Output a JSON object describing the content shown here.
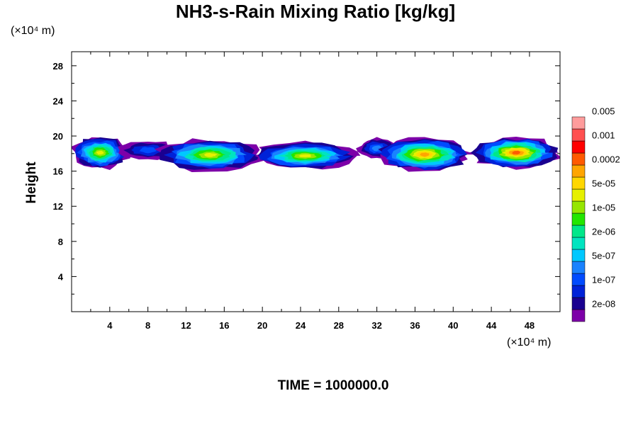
{
  "chart_data": {
    "type": "heatmap",
    "title": "NH3-s-Rain Mixing Ratio [kg/kg]",
    "ylabel": "Height",
    "x_unit_label": "(×10⁴ m)",
    "y_unit_label": "(×10⁴ m)",
    "footer": "TIME = 1000000.0",
    "xlim": [
      0,
      51.2
    ],
    "ylim": [
      0,
      29.6
    ],
    "x_ticks": [
      "4",
      "8",
      "12",
      "16",
      "20",
      "24",
      "28",
      "32",
      "36",
      "40",
      "44",
      "48"
    ],
    "y_ticks": [
      "4",
      "8",
      "12",
      "16",
      "20",
      "24",
      "28"
    ],
    "colorbar": {
      "colors": [
        "#7d00a8",
        "#1a0090",
        "#0022d8",
        "#004bff",
        "#1a82ff",
        "#00c8ff",
        "#00e4c0",
        "#00e78a",
        "#23e600",
        "#96e600",
        "#e6f000",
        "#ffd700",
        "#ffa500",
        "#ff5a00",
        "#ff0000",
        "#ff5050",
        "#ff9c9c"
      ],
      "labels": [
        "2e-08",
        "1e-07",
        "5e-07",
        "2e-06",
        "1e-05",
        "5e-05",
        "0.0002",
        "0.001",
        "0.005"
      ]
    },
    "field_bands": [
      {
        "x": [
          0,
          6
        ],
        "y": [
          16.2,
          20.0
        ],
        "peak_level": 10
      },
      {
        "x": [
          5,
          11
        ],
        "y": [
          17.3,
          19.5
        ],
        "peak_level": 3
      },
      {
        "x": [
          9,
          20
        ],
        "y": [
          16.0,
          19.7
        ],
        "peak_level": 10
      },
      {
        "x": [
          19,
          30
        ],
        "y": [
          16.2,
          19.3
        ],
        "peak_level": 10
      },
      {
        "x": [
          30,
          34
        ],
        "y": [
          17.4,
          19.8
        ],
        "peak_level": 4
      },
      {
        "x": [
          32,
          42
        ],
        "y": [
          16.0,
          19.8
        ],
        "peak_level": 12
      },
      {
        "x": [
          42,
          51.2
        ],
        "y": [
          16.3,
          19.9
        ],
        "peak_level": 13
      }
    ]
  }
}
